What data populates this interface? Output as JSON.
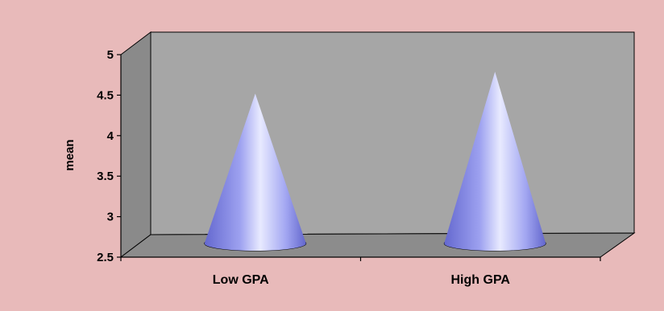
{
  "chart_data": {
    "type": "bar",
    "bar_shape": "cone",
    "categories": [
      "Low GPA",
      "High GPA"
    ],
    "values": [
      4.35,
      4.62
    ],
    "title": "",
    "xlabel": "",
    "ylabel": "mean",
    "ylim": [
      2.5,
      5
    ],
    "yticks": [
      "2.5",
      "3",
      "3.5",
      "4",
      "4.5",
      "5"
    ],
    "grid": false,
    "legend": "none",
    "colors": {
      "background": "#e8baba",
      "back_wall": "#a6a6a6",
      "side_wall": "#8a8a8a",
      "floor": "#8c8c8c",
      "cone_light": "#e6e8ff",
      "cone_mid": "#9a9ef0",
      "cone_dark": "#5c60c8"
    }
  }
}
